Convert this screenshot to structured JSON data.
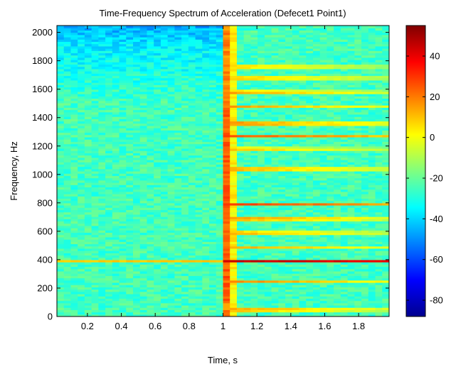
{
  "chart_data": {
    "type": "heatmap",
    "title": "Time-Frequency Spectrum of Acceleration (Defecet1 Point1)",
    "xlabel": "Time, s",
    "ylabel": "Frequency, Hz",
    "xlim": [
      0.02,
      1.98
    ],
    "ylim": [
      0,
      2048
    ],
    "xticks": [
      0.2,
      0.4,
      0.6,
      0.8,
      1,
      1.2,
      1.4,
      1.6,
      1.8
    ],
    "xtick_labels": [
      "0.2",
      "0.4",
      "0.6",
      "0.8",
      "1",
      "1.2",
      "1.4",
      "1.6",
      "1.8"
    ],
    "yticks": [
      0,
      200,
      400,
      600,
      800,
      1000,
      1200,
      1400,
      1600,
      1800,
      2000
    ],
    "ytick_labels": [
      "0",
      "200",
      "400",
      "600",
      "800",
      "1000",
      "1200",
      "1400",
      "1600",
      "1800",
      "2000"
    ],
    "colorbar": {
      "clim": [
        -88,
        55
      ],
      "ticks": [
        40,
        20,
        0,
        -20,
        -40,
        -60,
        -80
      ],
      "tick_labels": [
        "40",
        "20",
        "0",
        "-20",
        "-40",
        "-60",
        "-80"
      ],
      "colormap": "jet"
    },
    "grid": false,
    "impact_time": 0.98,
    "background_level_db": -25,
    "pre_impact_tone": {
      "frequency": 390,
      "level_db": 10
    },
    "post_impact_tones": [
      {
        "frequency": 50,
        "level_db": 22
      },
      {
        "frequency": 250,
        "level_db": 22
      },
      {
        "frequency": 390,
        "level_db": 48
      },
      {
        "frequency": 490,
        "level_db": 18
      },
      {
        "frequency": 590,
        "level_db": 20
      },
      {
        "frequency": 690,
        "level_db": 24
      },
      {
        "frequency": 790,
        "level_db": 34
      },
      {
        "frequency": 1040,
        "level_db": 22
      },
      {
        "frequency": 1180,
        "level_db": 15
      },
      {
        "frequency": 1270,
        "level_db": 30
      },
      {
        "frequency": 1360,
        "level_db": 26
      },
      {
        "frequency": 1480,
        "level_db": 16
      },
      {
        "frequency": 1580,
        "level_db": 20
      },
      {
        "frequency": 1680,
        "level_db": 18
      },
      {
        "frequency": 1760,
        "level_db": 16
      }
    ]
  },
  "colors": {
    "jet_stops": [
      "#00008f",
      "#0000ff",
      "#00ffff",
      "#ffff00",
      "#ff0000",
      "#800000"
    ],
    "axis": "#000000",
    "background": "#ffffff"
  }
}
